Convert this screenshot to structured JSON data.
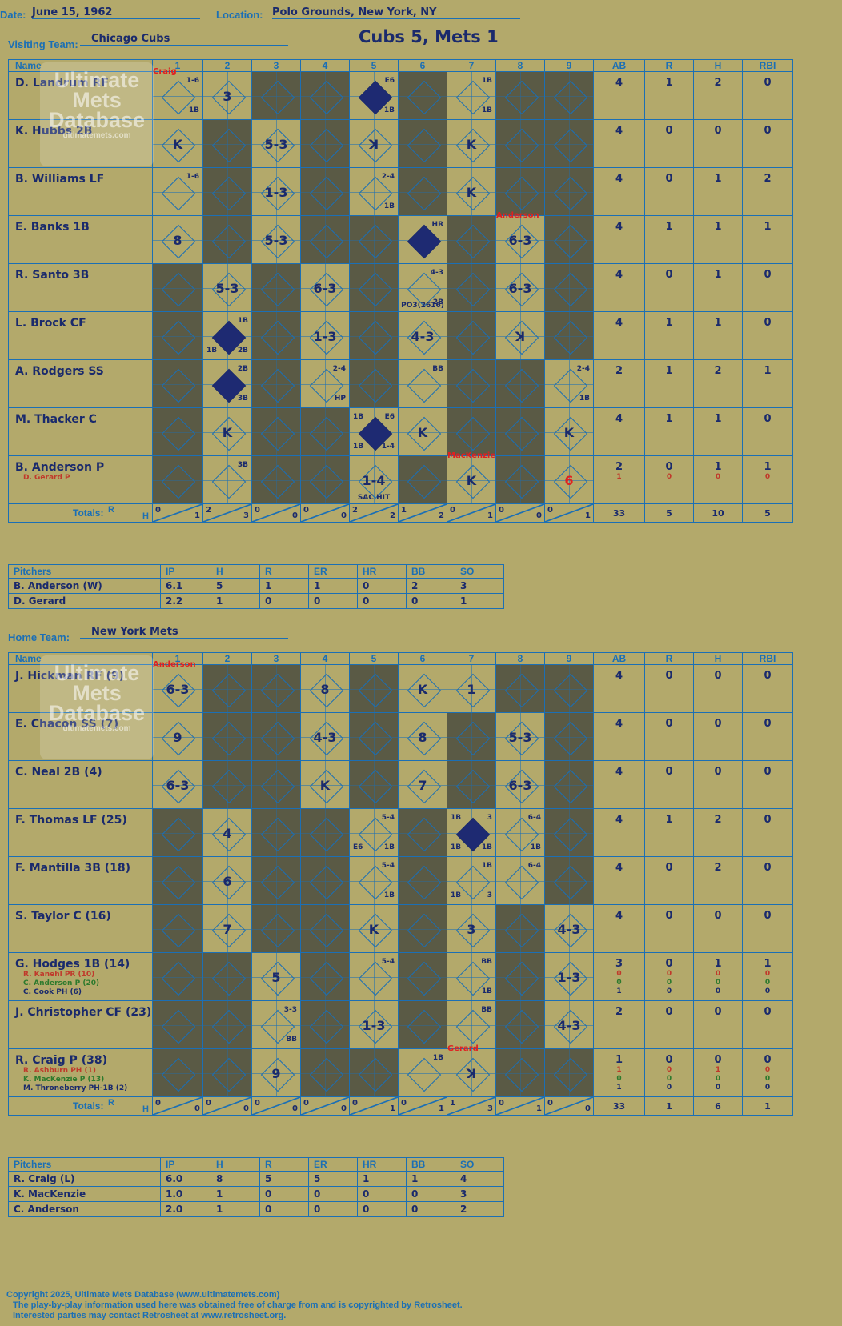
{
  "header": {
    "date_label": "Date:",
    "date": "June 15, 1962",
    "location_label": "Location:",
    "location": "Polo Grounds, New York, NY",
    "visiting_label": "Visiting Team:",
    "visiting_team": "Chicago Cubs",
    "home_label": "Home Team:",
    "home_team": "New York Mets",
    "score_title": "Cubs 5, Mets 1"
  },
  "columns": {
    "name": "Name",
    "innings": [
      "1",
      "2",
      "3",
      "4",
      "5",
      "6",
      "7",
      "8",
      "9"
    ],
    "stats": [
      "AB",
      "R",
      "H",
      "RBI"
    ],
    "totals": "Totals:",
    "tot_r": "R",
    "tot_h": "H"
  },
  "watermark": {
    "line1": "Ultimate",
    "line2": "Mets",
    "line3": "Database",
    "url": "ultimatemets.com"
  },
  "visiting": {
    "players": [
      {
        "name": "D. Landrum RF",
        "subs": [],
        "ab": "4",
        "r": "1",
        "h": "2",
        "rbi": "0",
        "sub_ab": [],
        "sub_r": [],
        "sub_h": [],
        "sub_rbi": [],
        "cells": [
          {
            "p": "",
            "run": false,
            "notes": [
              "1-6",
              "1B"
            ],
            "sub": "Craig"
          },
          {
            "p": "3"
          },
          {
            "dark": true
          },
          {
            "dark": true
          },
          {
            "p": "",
            "run": true,
            "notes": [
              "E6",
              "1B"
            ]
          },
          {
            "dark": true
          },
          {
            "p": "",
            "notes": [
              "1B",
              "1B"
            ]
          },
          {
            "dark": true
          },
          {
            "dark": true
          }
        ]
      },
      {
        "name": "K. Hubbs 2B",
        "subs": [],
        "ab": "4",
        "r": "0",
        "h": "0",
        "rbi": "0",
        "sub_ab": [],
        "sub_r": [],
        "sub_h": [],
        "sub_rbi": [],
        "cells": [
          {
            "p": "K"
          },
          {
            "dark": true
          },
          {
            "p": "5-3"
          },
          {
            "dark": true
          },
          {
            "p": "ꓘ"
          },
          {
            "dark": true
          },
          {
            "p": "K"
          },
          {
            "dark": true
          },
          {
            "dark": true
          }
        ]
      },
      {
        "name": "B. Williams LF",
        "subs": [],
        "ab": "4",
        "r": "0",
        "h": "1",
        "rbi": "2",
        "sub_ab": [],
        "sub_r": [],
        "sub_h": [],
        "sub_rbi": [],
        "cells": [
          {
            "p": "",
            "notes": [
              "1-6"
            ]
          },
          {
            "dark": true
          },
          {
            "p": "1-3"
          },
          {
            "dark": true
          },
          {
            "p": "",
            "notes": [
              "2-4",
              "1B"
            ]
          },
          {
            "dark": true
          },
          {
            "p": "K"
          },
          {
            "dark": true
          },
          {
            "dark": true
          }
        ]
      },
      {
        "name": "E. Banks 1B",
        "subs": [],
        "ab": "4",
        "r": "1",
        "h": "1",
        "rbi": "1",
        "sub_ab": [],
        "sub_r": [],
        "sub_h": [],
        "sub_rbi": [],
        "cells": [
          {
            "p": "8"
          },
          {
            "dark": true
          },
          {
            "p": "5-3"
          },
          {
            "dark": true
          },
          {
            "dark": true
          },
          {
            "p": "",
            "run": true,
            "notes": [
              "HR"
            ]
          },
          {
            "dark": true
          },
          {
            "p": "6-3",
            "sub": "Anderson"
          },
          {
            "dark": true
          }
        ]
      },
      {
        "name": "R. Santo 3B",
        "subs": [],
        "ab": "4",
        "r": "0",
        "h": "1",
        "rbi": "0",
        "sub_ab": [],
        "sub_r": [],
        "sub_h": [],
        "sub_rbi": [],
        "cells": [
          {
            "dark": true
          },
          {
            "p": "5-3"
          },
          {
            "dark": true
          },
          {
            "p": "6-3"
          },
          {
            "dark": true
          },
          {
            "p": "",
            "notes": [
              "4-3",
              "2B",
              "PO3(2616)"
            ]
          },
          {
            "dark": true
          },
          {
            "p": "6-3"
          },
          {
            "dark": true
          }
        ]
      },
      {
        "name": "L. Brock CF",
        "subs": [],
        "ab": "4",
        "r": "1",
        "h": "1",
        "rbi": "0",
        "sub_ab": [],
        "sub_r": [],
        "sub_h": [],
        "sub_rbi": [],
        "cells": [
          {
            "dark": true
          },
          {
            "p": "",
            "run": true,
            "notes": [
              "1B",
              "2B",
              "1B"
            ]
          },
          {
            "dark": true
          },
          {
            "p": "1-3"
          },
          {
            "dark": true
          },
          {
            "p": "4-3"
          },
          {
            "dark": true
          },
          {
            "p": "ꓘ"
          },
          {
            "dark": true
          }
        ]
      },
      {
        "name": "A. Rodgers SS",
        "subs": [],
        "ab": "2",
        "r": "1",
        "h": "2",
        "rbi": "1",
        "sub_ab": [],
        "sub_r": [],
        "sub_h": [],
        "sub_rbi": [],
        "cells": [
          {
            "dark": true
          },
          {
            "p": "",
            "run": true,
            "notes": [
              "2B",
              "3B"
            ]
          },
          {
            "dark": true
          },
          {
            "p": "",
            "notes": [
              "2-4",
              "HP"
            ]
          },
          {
            "dark": true
          },
          {
            "p": "",
            "notes": [
              "BB"
            ]
          },
          {
            "dark": true
          },
          {
            "dark": true
          },
          {
            "p": "",
            "notes": [
              "2-4",
              "1B"
            ]
          }
        ]
      },
      {
        "name": "M. Thacker C",
        "subs": [],
        "ab": "4",
        "r": "1",
        "h": "1",
        "rbi": "0",
        "sub_ab": [],
        "sub_r": [],
        "sub_h": [],
        "sub_rbi": [],
        "cells": [
          {
            "dark": true
          },
          {
            "p": "K"
          },
          {
            "dark": true
          },
          {
            "dark": true
          },
          {
            "p": "",
            "run": true,
            "notes": [
              "E6",
              "1-4",
              "1B",
              "1B"
            ]
          },
          {
            "p": "K"
          },
          {
            "dark": true
          },
          {
            "dark": true
          },
          {
            "p": "K"
          }
        ]
      },
      {
        "name": "B. Anderson P",
        "subs": [
          "D. Gerard P"
        ],
        "ab": "2",
        "r": "0",
        "h": "1",
        "rbi": "1",
        "sub_ab": [
          "1"
        ],
        "sub_r": [
          "0"
        ],
        "sub_h": [
          "0"
        ],
        "sub_rbi": [
          "0"
        ],
        "cells": [
          {
            "dark": true
          },
          {
            "p": "",
            "notes": [
              "3B"
            ]
          },
          {
            "dark": true
          },
          {
            "dark": true
          },
          {
            "p": "1-4",
            "notes": [
              "SAC HIT"
            ]
          },
          {
            "dark": true
          },
          {
            "p": "K",
            "sub": "MacKenzie"
          },
          {
            "dark": true
          },
          {
            "p": "6",
            "red": true
          }
        ]
      }
    ],
    "totals": [
      {
        "r": "0",
        "h": "1"
      },
      {
        "r": "2",
        "h": "3"
      },
      {
        "r": "0",
        "h": "0"
      },
      {
        "r": "0",
        "h": "0"
      },
      {
        "r": "2",
        "h": "2"
      },
      {
        "r": "1",
        "h": "2"
      },
      {
        "r": "0",
        "h": "1"
      },
      {
        "r": "0",
        "h": "0"
      },
      {
        "r": "0",
        "h": "1"
      }
    ],
    "stat_totals": {
      "ab": "33",
      "r": "5",
      "h": "10",
      "rbi": "5"
    },
    "pitchers_label": "Pitchers",
    "pitcher_cols": [
      "IP",
      "H",
      "R",
      "ER",
      "HR",
      "BB",
      "SO"
    ],
    "pitchers": [
      {
        "name": "B. Anderson (W)",
        "vals": [
          "6.1",
          "5",
          "1",
          "1",
          "0",
          "2",
          "3"
        ]
      },
      {
        "name": "D. Gerard",
        "vals": [
          "2.2",
          "1",
          "0",
          "0",
          "0",
          "0",
          "1"
        ]
      }
    ]
  },
  "home": {
    "players": [
      {
        "name": "J. Hickman RF (9)",
        "subs": [],
        "ab": "4",
        "r": "0",
        "h": "0",
        "rbi": "0",
        "sub_ab": [],
        "sub_r": [],
        "sub_h": [],
        "sub_rbi": [],
        "cells": [
          {
            "p": "6-3",
            "sub": "Anderson"
          },
          {
            "dark": true
          },
          {
            "dark": true
          },
          {
            "p": "8"
          },
          {
            "dark": true
          },
          {
            "p": "K"
          },
          {
            "p": "1"
          },
          {
            "dark": true
          },
          {
            "dark": true
          }
        ]
      },
      {
        "name": "E. Chacon SS (7)",
        "subs": [],
        "ab": "4",
        "r": "0",
        "h": "0",
        "rbi": "0",
        "sub_ab": [],
        "sub_r": [],
        "sub_h": [],
        "sub_rbi": [],
        "cells": [
          {
            "p": "9"
          },
          {
            "dark": true
          },
          {
            "dark": true
          },
          {
            "p": "4-3"
          },
          {
            "dark": true
          },
          {
            "p": "8"
          },
          {
            "dark": true
          },
          {
            "p": "5-3"
          },
          {
            "dark": true
          }
        ]
      },
      {
        "name": "C. Neal 2B (4)",
        "subs": [],
        "ab": "4",
        "r": "0",
        "h": "0",
        "rbi": "0",
        "sub_ab": [],
        "sub_r": [],
        "sub_h": [],
        "sub_rbi": [],
        "cells": [
          {
            "p": "6-3"
          },
          {
            "dark": true
          },
          {
            "dark": true
          },
          {
            "p": "K"
          },
          {
            "dark": true
          },
          {
            "p": "7"
          },
          {
            "dark": true
          },
          {
            "p": "6-3"
          },
          {
            "dark": true
          }
        ]
      },
      {
        "name": "F. Thomas LF (25)",
        "subs": [],
        "ab": "4",
        "r": "1",
        "h": "2",
        "rbi": "0",
        "sub_ab": [],
        "sub_r": [],
        "sub_h": [],
        "sub_rbi": [],
        "cells": [
          {
            "dark": true
          },
          {
            "p": "4"
          },
          {
            "dark": true
          },
          {
            "dark": true
          },
          {
            "p": "",
            "notes": [
              "5-4",
              "1B",
              "E6"
            ]
          },
          {
            "dark": true
          },
          {
            "p": "",
            "run": true,
            "notes": [
              "3",
              "1B",
              "1B",
              "1B"
            ]
          },
          {
            "p": "",
            "notes": [
              "6-4",
              "1B"
            ]
          },
          {
            "dark": true
          }
        ]
      },
      {
        "name": "F. Mantilla 3B (18)",
        "subs": [],
        "ab": "4",
        "r": "0",
        "h": "2",
        "rbi": "0",
        "sub_ab": [],
        "sub_r": [],
        "sub_h": [],
        "sub_rbi": [],
        "cells": [
          {
            "dark": true
          },
          {
            "p": "6"
          },
          {
            "dark": true
          },
          {
            "dark": true
          },
          {
            "p": "",
            "notes": [
              "5-4",
              "1B"
            ]
          },
          {
            "dark": true
          },
          {
            "p": "",
            "notes": [
              "1B",
              "3",
              "1B"
            ]
          },
          {
            "p": "",
            "notes": [
              "6-4"
            ]
          },
          {
            "dark": true
          }
        ]
      },
      {
        "name": "S. Taylor C (16)",
        "subs": [],
        "ab": "4",
        "r": "0",
        "h": "0",
        "rbi": "0",
        "sub_ab": [],
        "sub_r": [],
        "sub_h": [],
        "sub_rbi": [],
        "cells": [
          {
            "dark": true
          },
          {
            "p": "7"
          },
          {
            "dark": true
          },
          {
            "dark": true
          },
          {
            "p": "K"
          },
          {
            "dark": true
          },
          {
            "p": "3"
          },
          {
            "dark": true
          },
          {
            "p": "4-3"
          }
        ]
      },
      {
        "name": "G. Hodges 1B (14)",
        "subs": [
          "R. Kanehl PR (10)",
          "C. Anderson P (20)",
          "C. Cook PH (6)"
        ],
        "ab": "3",
        "r": "0",
        "h": "1",
        "rbi": "1",
        "sub_ab": [
          "0",
          "0",
          "1"
        ],
        "sub_r": [
          "0",
          "0",
          "0"
        ],
        "sub_h": [
          "0",
          "0",
          "0"
        ],
        "sub_rbi": [
          "0",
          "0",
          "0"
        ],
        "cells": [
          {
            "dark": true
          },
          {
            "dark": true
          },
          {
            "p": "5"
          },
          {
            "dark": true
          },
          {
            "p": "",
            "notes": [
              "5-4"
            ]
          },
          {
            "dark": true
          },
          {
            "p": "",
            "notes": [
              "BB",
              "1B"
            ]
          },
          {
            "dark": true
          },
          {
            "p": "1-3"
          }
        ]
      },
      {
        "name": "J. Christopher CF (23)",
        "subs": [],
        "ab": "2",
        "r": "0",
        "h": "0",
        "rbi": "0",
        "sub_ab": [],
        "sub_r": [],
        "sub_h": [],
        "sub_rbi": [],
        "cells": [
          {
            "dark": true
          },
          {
            "dark": true
          },
          {
            "p": "",
            "notes": [
              "3-3",
              "BB"
            ]
          },
          {
            "dark": true
          },
          {
            "p": "1-3"
          },
          {
            "dark": true
          },
          {
            "p": "",
            "notes": [
              "BB"
            ]
          },
          {
            "dark": true
          },
          {
            "p": "4-3"
          }
        ]
      },
      {
        "name": "R. Craig P (38)",
        "subs": [
          "R. Ashburn PH (1)",
          "K. MacKenzie P (13)",
          "M. Throneberry PH-1B (2)"
        ],
        "ab": "1",
        "r": "0",
        "h": "0",
        "rbi": "0",
        "sub_ab": [
          "1",
          "0",
          "1"
        ],
        "sub_r": [
          "0",
          "0",
          "0"
        ],
        "sub_h": [
          "1",
          "0",
          "0"
        ],
        "sub_rbi": [
          "0",
          "0",
          "0"
        ],
        "cells": [
          {
            "dark": true
          },
          {
            "dark": true
          },
          {
            "p": "9"
          },
          {
            "dark": true
          },
          {
            "dark": true
          },
          {
            "p": "",
            "notes": [
              "1B"
            ]
          },
          {
            "p": "ꓘ",
            "sub": "Gerard"
          },
          {
            "dark": true
          },
          {
            "dark": true
          }
        ]
      }
    ],
    "totals": [
      {
        "r": "0",
        "h": "0"
      },
      {
        "r": "0",
        "h": "0"
      },
      {
        "r": "0",
        "h": "0"
      },
      {
        "r": "0",
        "h": "0"
      },
      {
        "r": "0",
        "h": "1"
      },
      {
        "r": "0",
        "h": "1"
      },
      {
        "r": "1",
        "h": "3"
      },
      {
        "r": "0",
        "h": "1"
      },
      {
        "r": "0",
        "h": "0"
      }
    ],
    "stat_totals": {
      "ab": "33",
      "r": "1",
      "h": "6",
      "rbi": "1"
    },
    "pitchers_label": "Pitchers",
    "pitcher_cols": [
      "IP",
      "H",
      "R",
      "ER",
      "HR",
      "BB",
      "SO"
    ],
    "pitchers": [
      {
        "name": "R. Craig (L)",
        "vals": [
          "6.0",
          "8",
          "5",
          "5",
          "1",
          "1",
          "4"
        ]
      },
      {
        "name": "K. MacKenzie",
        "vals": [
          "1.0",
          "1",
          "0",
          "0",
          "0",
          "0",
          "3"
        ]
      },
      {
        "name": "C. Anderson",
        "vals": [
          "2.0",
          "1",
          "0",
          "0",
          "0",
          "0",
          "2"
        ]
      }
    ]
  },
  "footer": {
    "line1": "Copyright 2025, Ultimate Mets Database (www.ultimatemets.com)",
    "line2": "The play-by-play information used here was obtained free of charge from and is copyrighted by Retrosheet.",
    "line3": "Interested parties may contact Retrosheet at www.retrosheet.org."
  }
}
